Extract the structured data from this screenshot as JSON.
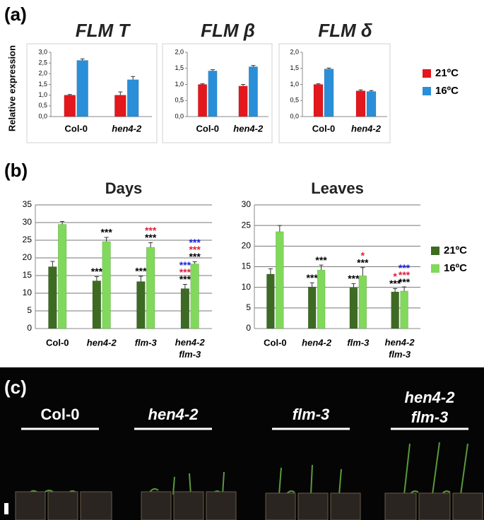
{
  "panel_labels": [
    "(a)",
    "(b)",
    "(c)"
  ],
  "photo_labels": [
    "Col-0",
    "hen4-2",
    "flm-3",
    "hen4-2 flm-3"
  ],
  "chart_data": [
    {
      "type": "bar",
      "title": "FLM T",
      "ylabel": "Relative expression",
      "categories": [
        "Col-0",
        "hen4-2"
      ],
      "series": [
        {
          "name": "21ºC",
          "color": "#e3171c",
          "values": [
            1.0,
            1.0
          ],
          "errors": [
            0.03,
            0.15
          ]
        },
        {
          "name": "16ºC",
          "color": "#2a8fd8",
          "values": [
            2.62,
            1.72
          ],
          "errors": [
            0.07,
            0.15
          ]
        }
      ],
      "ylim": [
        0,
        3.0
      ],
      "yticks": [
        {
          "value": 0,
          "label": "0,0"
        },
        {
          "value": 0.5,
          "label": "0,5"
        },
        {
          "value": 1.0,
          "label": "1,0"
        },
        {
          "value": 1.5,
          "label": "1,5"
        },
        {
          "value": 2.0,
          "label": "2,0"
        },
        {
          "value": 2.5,
          "label": "2,5"
        },
        {
          "value": 3.0,
          "label": "3,0"
        }
      ],
      "grid": false
    },
    {
      "type": "bar",
      "title": "FLM β",
      "categories": [
        "Col-0",
        "hen4-2"
      ],
      "series": [
        {
          "color": "#e3171c",
          "values": [
            1.0,
            0.95
          ],
          "errors": [
            0.02,
            0.05
          ]
        },
        {
          "color": "#2a8fd8",
          "values": [
            1.42,
            1.55
          ],
          "errors": [
            0.04,
            0.04
          ]
        }
      ],
      "ylim": [
        0,
        2.0
      ],
      "yticks": [
        {
          "value": 0,
          "label": "0,0"
        },
        {
          "value": 0.5,
          "label": "0,5"
        },
        {
          "value": 1.0,
          "label": "1,0"
        },
        {
          "value": 1.5,
          "label": "1,5"
        },
        {
          "value": 2.0,
          "label": "2,0"
        }
      ],
      "grid": false
    },
    {
      "type": "bar",
      "title": "FLM δ",
      "categories": [
        "Col-0",
        "hen4-2"
      ],
      "series": [
        {
          "color": "#e3171c",
          "values": [
            1.0,
            0.8
          ],
          "errors": [
            0.02,
            0.03
          ]
        },
        {
          "color": "#2a8fd8",
          "values": [
            1.48,
            0.78
          ],
          "errors": [
            0.03,
            0.03
          ]
        }
      ],
      "ylim": [
        0,
        2.0
      ],
      "yticks": [
        {
          "value": 0,
          "label": "0,0"
        },
        {
          "value": 0.5,
          "label": "0,5"
        },
        {
          "value": 1.0,
          "label": "1,0"
        },
        {
          "value": 1.5,
          "label": "1,5"
        },
        {
          "value": 2.0,
          "label": "2,0"
        }
      ],
      "grid": false
    },
    {
      "type": "bar",
      "title": "Days",
      "categories": [
        "Col-0",
        "hen4-2",
        "flm-3",
        "hen4-2 flm-3"
      ],
      "series": [
        {
          "name": "21ºC",
          "color": "#3e6b23",
          "values": [
            17.5,
            13.5,
            13.3,
            11.3
          ],
          "errors": [
            1.5,
            1.2,
            1.5,
            1.2
          ],
          "stars": [
            [],
            [
              {
                "text": "***",
                "color": "#000000"
              }
            ],
            [
              {
                "text": "***",
                "color": "#000000"
              }
            ],
            [
              {
                "text": "***",
                "color": "#2020e0"
              },
              {
                "text": "***",
                "color": "#e0203a"
              },
              {
                "text": "***",
                "color": "#000000"
              }
            ]
          ]
        },
        {
          "name": "16ºC",
          "color": "#80d95a",
          "values": [
            29.5,
            24.6,
            23.0,
            18.3
          ],
          "errors": [
            0.8,
            1.2,
            1.3,
            0.6
          ],
          "stars": [
            [],
            [
              {
                "text": "***",
                "color": "#000000"
              }
            ],
            [
              {
                "text": "***",
                "color": "#e0203a"
              },
              {
                "text": "***",
                "color": "#000000"
              }
            ],
            [
              {
                "text": "***",
                "color": "#2020e0"
              },
              {
                "text": "***",
                "color": "#e0203a"
              },
              {
                "text": "***",
                "color": "#000000"
              }
            ]
          ]
        }
      ],
      "ylim": [
        0,
        35
      ],
      "yticks": [
        0,
        5,
        10,
        15,
        20,
        25,
        30,
        35
      ],
      "grid": true
    },
    {
      "type": "bar",
      "title": "Leaves",
      "categories": [
        "Col-0",
        "hen4-2",
        "flm-3",
        "hen4-2 flm-3"
      ],
      "series": [
        {
          "color": "#3e6b23",
          "values": [
            13.2,
            10.1,
            9.9,
            8.9
          ],
          "errors": [
            1.3,
            1.0,
            1.0,
            0.8
          ],
          "stars": [
            [],
            [
              {
                "text": "***",
                "color": "#000000"
              }
            ],
            [
              {
                "text": "***",
                "color": "#000000"
              }
            ],
            [
              {
                "text": "*",
                "color": "#e0203a"
              },
              {
                "text": "***",
                "color": "#000000"
              }
            ]
          ]
        },
        {
          "color": "#80d95a",
          "values": [
            23.5,
            14.2,
            12.8,
            9.1
          ],
          "errors": [
            1.5,
            1.2,
            2.0,
            1.0
          ],
          "stars": [
            [],
            [
              {
                "text": "***",
                "color": "#000000"
              }
            ],
            [
              {
                "text": "*",
                "color": "#e0203a"
              },
              {
                "text": "***",
                "color": "#000000"
              }
            ],
            [
              {
                "text": "***",
                "color": "#2020e0"
              },
              {
                "text": "***",
                "color": "#e0203a"
              },
              {
                "text": "***",
                "color": "#000000"
              }
            ]
          ]
        }
      ],
      "ylim": [
        0,
        30
      ],
      "yticks": [
        0,
        5,
        10,
        15,
        20,
        25,
        30
      ],
      "grid": true
    }
  ]
}
